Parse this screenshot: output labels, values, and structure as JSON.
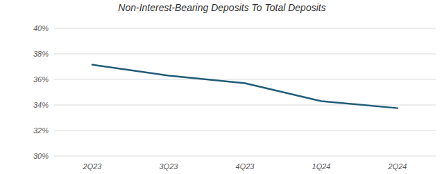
{
  "chart_data": {
    "type": "line",
    "title": "Non-Interest-Bearing Deposits To Total Deposits",
    "categories": [
      "2Q23",
      "3Q23",
      "4Q23",
      "1Q24",
      "2Q24"
    ],
    "values": [
      37.15,
      36.3,
      35.7,
      34.3,
      33.75
    ],
    "color": "#215c78",
    "ylim": [
      30,
      40
    ],
    "yticks": [
      {
        "value": 30,
        "label": "30%"
      },
      {
        "value": 32,
        "label": "32%"
      },
      {
        "value": 34,
        "label": "34%"
      },
      {
        "value": 36,
        "label": "36%"
      },
      {
        "value": 38,
        "label": "38%"
      },
      {
        "value": 40,
        "label": "40%"
      }
    ],
    "grid": true
  }
}
